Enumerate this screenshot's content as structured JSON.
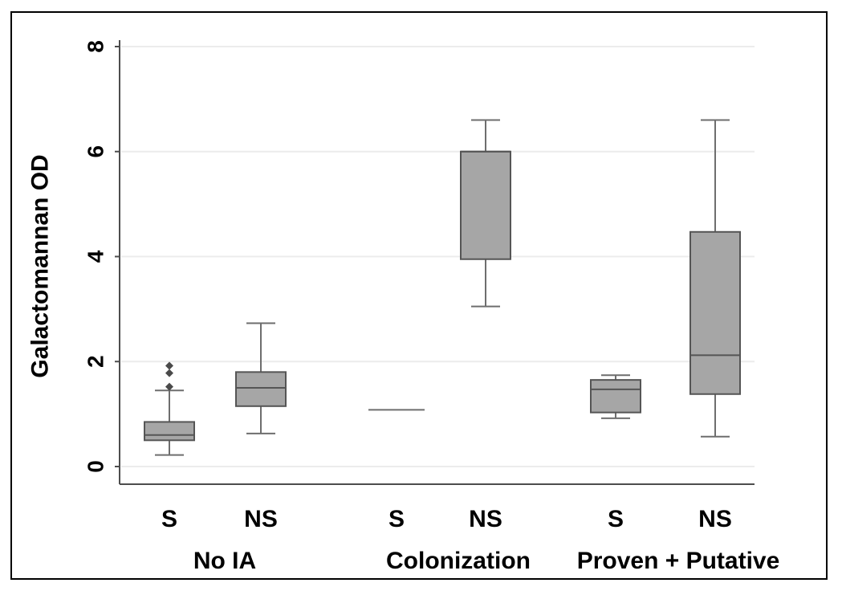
{
  "chart_data": {
    "type": "box",
    "ylabel": "Galactomannan OD",
    "ylim": [
      0,
      8
    ],
    "yticks": [
      "0",
      "2",
      "4",
      "6",
      "8"
    ],
    "grid": true,
    "groups": [
      {
        "name": "No IA",
        "boxes": [
          {
            "label": "S",
            "min": 0.22,
            "q1": 0.5,
            "median": 0.6,
            "q3": 0.85,
            "max": 1.45,
            "outliers": [
              1.52,
              1.78,
              1.92
            ]
          },
          {
            "label": "NS",
            "min": 0.63,
            "q1": 1.15,
            "median": 1.5,
            "q3": 1.8,
            "max": 2.73,
            "outliers": []
          }
        ]
      },
      {
        "name": "Colonization",
        "boxes": [
          {
            "label": "S",
            "min": 1.08,
            "q1": 1.08,
            "median": 1.08,
            "q3": 1.08,
            "max": 1.08,
            "outliers": []
          },
          {
            "label": "NS",
            "min": 3.05,
            "q1": 3.95,
            "median": 6.0,
            "q3": 6.0,
            "max": 6.6,
            "outliers": []
          }
        ]
      },
      {
        "name": "Proven + Putative",
        "boxes": [
          {
            "label": "S",
            "min": 0.92,
            "q1": 1.03,
            "median": 1.47,
            "q3": 1.65,
            "max": 1.74,
            "outliers": []
          },
          {
            "label": "NS",
            "min": 0.57,
            "q1": 1.38,
            "median": 2.12,
            "q3": 4.47,
            "max": 6.6,
            "outliers": []
          }
        ]
      }
    ],
    "colors": {
      "box_fill": "#a6a6a6",
      "box_stroke": "#555555",
      "whisker": "#6e6e6e",
      "outlier": "#4a4a4a",
      "grid": "#ececec",
      "axis": "#4d4d4d"
    }
  }
}
